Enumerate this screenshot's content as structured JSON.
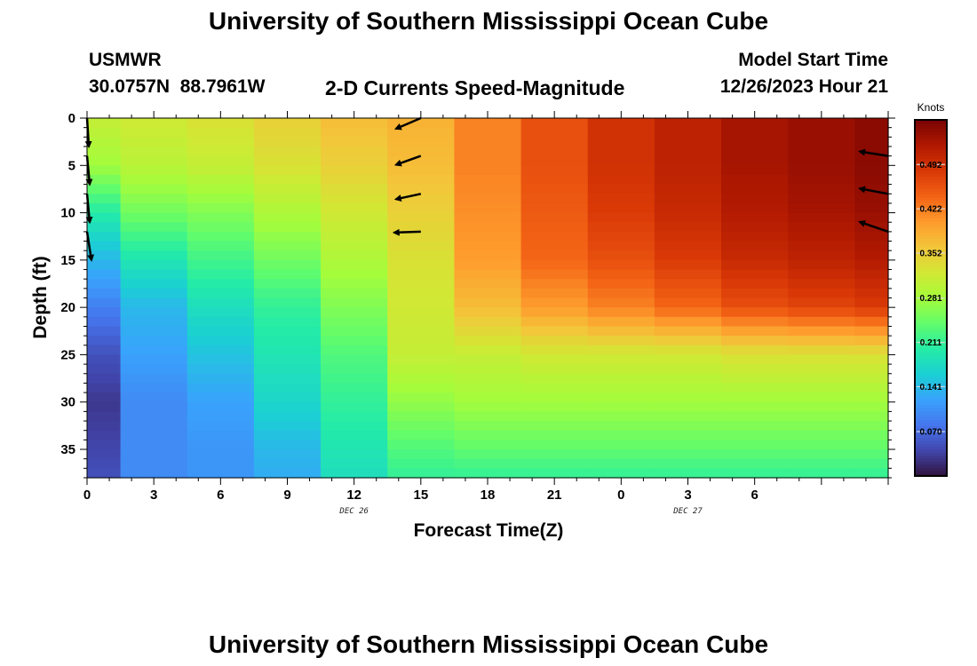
{
  "chart_data": {
    "type": "heatmap",
    "title": "University of Southern Mississippi Ocean Cube",
    "subtitle": "2-D Currents Speed-Magnitude",
    "station": {
      "name": "USMWR",
      "lat": "30.0757N",
      "lon": "88.7961W"
    },
    "model_start": {
      "label": "Model Start Time",
      "value": "12/26/2023 Hour 21"
    },
    "xlabel": "Forecast Time(Z)",
    "ylabel": "Depth (ft)",
    "x_tick_labels": [
      "0",
      "3",
      "6",
      "9",
      "12",
      "15",
      "18",
      "21",
      "0",
      "3",
      "6"
    ],
    "x_range_hours": [
      0,
      36
    ],
    "date_labels": [
      {
        "text": "DEC 26",
        "hour": 12
      },
      {
        "text": "DEC 27",
        "hour": 27
      }
    ],
    "y_tick_labels": [
      "0",
      "5",
      "10",
      "15",
      "20",
      "25",
      "30",
      "35"
    ],
    "y_range_ft": [
      0,
      38
    ],
    "colorbar": {
      "label": "Knots",
      "range": [
        0.0,
        0.5625
      ],
      "ticks": [
        "0.070",
        "0.141",
        "0.211",
        "0.281",
        "0.352",
        "0.422",
        "0.492"
      ],
      "colormap": [
        "#30123b",
        "#4145ab",
        "#4675ed",
        "#39a2fc",
        "#1bcfd4",
        "#24eca6",
        "#61fc6c",
        "#a4fc3b",
        "#d1e834",
        "#f3c63a",
        "#fe9b2d",
        "#f36315",
        "#d93806",
        "#b11901",
        "#7a0403"
      ]
    },
    "time_hours": [
      0,
      3,
      6,
      9,
      12,
      15,
      18,
      21,
      24,
      27,
      30,
      33,
      36
    ],
    "depth_profiles": [
      {
        "hour": 0,
        "speeds": [
          [
            0,
            0.31
          ],
          [
            5,
            0.28
          ],
          [
            10,
            0.2
          ],
          [
            15,
            0.14
          ],
          [
            20,
            0.09
          ],
          [
            25,
            0.05
          ],
          [
            30,
            0.03
          ],
          [
            35,
            0.04
          ],
          [
            38,
            0.05
          ]
        ]
      },
      {
        "hour": 3,
        "speeds": [
          [
            0,
            0.32
          ],
          [
            5,
            0.3
          ],
          [
            10,
            0.25
          ],
          [
            15,
            0.19
          ],
          [
            20,
            0.14
          ],
          [
            25,
            0.12
          ],
          [
            30,
            0.1
          ],
          [
            35,
            0.1
          ],
          [
            38,
            0.1
          ]
        ]
      },
      {
        "hour": 6,
        "speeds": [
          [
            0,
            0.33
          ],
          [
            5,
            0.31
          ],
          [
            10,
            0.26
          ],
          [
            15,
            0.22
          ],
          [
            20,
            0.18
          ],
          [
            25,
            0.15
          ],
          [
            30,
            0.12
          ],
          [
            35,
            0.11
          ],
          [
            38,
            0.11
          ]
        ]
      },
      {
        "hour": 9,
        "speeds": [
          [
            0,
            0.35
          ],
          [
            5,
            0.33
          ],
          [
            10,
            0.29
          ],
          [
            15,
            0.25
          ],
          [
            20,
            0.21
          ],
          [
            25,
            0.19
          ],
          [
            30,
            0.17
          ],
          [
            35,
            0.14
          ],
          [
            38,
            0.13
          ]
        ]
      },
      {
        "hour": 12,
        "speeds": [
          [
            0,
            0.37
          ],
          [
            5,
            0.35
          ],
          [
            10,
            0.32
          ],
          [
            15,
            0.29
          ],
          [
            20,
            0.26
          ],
          [
            25,
            0.23
          ],
          [
            30,
            0.21
          ],
          [
            35,
            0.19
          ],
          [
            38,
            0.18
          ]
        ]
      },
      {
        "hour": 15,
        "speeds": [
          [
            0,
            0.38
          ],
          [
            5,
            0.37
          ],
          [
            10,
            0.35
          ],
          [
            15,
            0.33
          ],
          [
            20,
            0.32
          ],
          [
            25,
            0.31
          ],
          [
            30,
            0.27
          ],
          [
            35,
            0.23
          ],
          [
            38,
            0.21
          ]
        ]
      },
      {
        "hour": 18,
        "speeds": [
          [
            0,
            0.42
          ],
          [
            5,
            0.42
          ],
          [
            10,
            0.41
          ],
          [
            15,
            0.4
          ],
          [
            20,
            0.37
          ],
          [
            25,
            0.31
          ],
          [
            30,
            0.28
          ],
          [
            35,
            0.24
          ],
          [
            38,
            0.21
          ]
        ]
      },
      {
        "hour": 21,
        "speeds": [
          [
            0,
            0.46
          ],
          [
            5,
            0.46
          ],
          [
            10,
            0.45
          ],
          [
            15,
            0.44
          ],
          [
            20,
            0.4
          ],
          [
            25,
            0.32
          ],
          [
            30,
            0.28
          ],
          [
            35,
            0.24
          ],
          [
            38,
            0.21
          ]
        ]
      },
      {
        "hour": 24,
        "speeds": [
          [
            0,
            0.49
          ],
          [
            5,
            0.49
          ],
          [
            10,
            0.48
          ],
          [
            15,
            0.46
          ],
          [
            20,
            0.42
          ],
          [
            25,
            0.32
          ],
          [
            30,
            0.28
          ],
          [
            35,
            0.24
          ],
          [
            38,
            0.21
          ]
        ]
      },
      {
        "hour": 27,
        "speeds": [
          [
            0,
            0.51
          ],
          [
            5,
            0.51
          ],
          [
            10,
            0.5
          ],
          [
            15,
            0.48
          ],
          [
            20,
            0.44
          ],
          [
            25,
            0.32
          ],
          [
            30,
            0.28
          ],
          [
            35,
            0.24
          ],
          [
            38,
            0.21
          ]
        ]
      },
      {
        "hour": 30,
        "speeds": [
          [
            0,
            0.53
          ],
          [
            5,
            0.53
          ],
          [
            10,
            0.52
          ],
          [
            15,
            0.5
          ],
          [
            20,
            0.46
          ],
          [
            25,
            0.33
          ],
          [
            30,
            0.28
          ],
          [
            35,
            0.24
          ],
          [
            38,
            0.21
          ]
        ]
      },
      {
        "hour": 33,
        "speeds": [
          [
            0,
            0.54
          ],
          [
            5,
            0.54
          ],
          [
            10,
            0.53
          ],
          [
            15,
            0.51
          ],
          [
            20,
            0.47
          ],
          [
            25,
            0.33
          ],
          [
            30,
            0.28
          ],
          [
            35,
            0.24
          ],
          [
            38,
            0.21
          ]
        ]
      },
      {
        "hour": 36,
        "speeds": [
          [
            0,
            0.55
          ],
          [
            5,
            0.55
          ],
          [
            10,
            0.54
          ],
          [
            15,
            0.52
          ],
          [
            20,
            0.48
          ],
          [
            25,
            0.33
          ],
          [
            30,
            0.28
          ],
          [
            35,
            0.24
          ],
          [
            38,
            0.21
          ]
        ]
      }
    ],
    "current_vectors": [
      {
        "hour": 0,
        "depth_ft": 0,
        "dx": 2,
        "dy": 32
      },
      {
        "hour": 0,
        "depth_ft": 4,
        "dx": 3,
        "dy": 32
      },
      {
        "hour": 0,
        "depth_ft": 8,
        "dx": 3,
        "dy": 32
      },
      {
        "hour": 0,
        "depth_ft": 12,
        "dx": 5,
        "dy": 32
      },
      {
        "hour": 15,
        "depth_ft": 0,
        "dx": -28,
        "dy": 12
      },
      {
        "hour": 15,
        "depth_ft": 4,
        "dx": -28,
        "dy": 10
      },
      {
        "hour": 15,
        "depth_ft": 8,
        "dx": -28,
        "dy": 6
      },
      {
        "hour": 15,
        "depth_ft": 12,
        "dx": -30,
        "dy": 1
      },
      {
        "hour": 36,
        "depth_ft": 4,
        "dx": -32,
        "dy": -5
      },
      {
        "hour": 36,
        "depth_ft": 8,
        "dx": -32,
        "dy": -6
      },
      {
        "hour": 36,
        "depth_ft": 12,
        "dx": -32,
        "dy": -11
      }
    ]
  },
  "footer_title": "University of Southern Mississippi Ocean Cube"
}
